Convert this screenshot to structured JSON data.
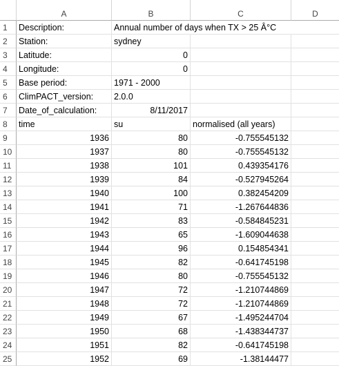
{
  "columns": [
    "A",
    "B",
    "C",
    "D"
  ],
  "meta_rows": [
    {
      "n": "1",
      "a": "Description:",
      "b": "Annual number of days when TX > 25 Â°C",
      "b_align": "left",
      "c": ""
    },
    {
      "n": "2",
      "a": "Station:",
      "b": "sydney",
      "b_align": "left",
      "c": ""
    },
    {
      "n": "3",
      "a": "Latitude:",
      "b": "0",
      "b_align": "right",
      "c": ""
    },
    {
      "n": "4",
      "a": "Longitude:",
      "b": "0",
      "b_align": "right",
      "c": ""
    },
    {
      "n": "5",
      "a": "Base period:",
      "b": "1971 - 2000",
      "b_align": "left",
      "c": ""
    },
    {
      "n": "6",
      "a": "ClimPACT_version:",
      "b": "2.0.0",
      "b_align": "left",
      "c": ""
    },
    {
      "n": "7",
      "a": "Date_of_calculation:",
      "b": "8/11/2017",
      "b_align": "right",
      "c": ""
    },
    {
      "n": "8",
      "a": "time",
      "b": "su",
      "b_align": "left",
      "c": "normalised (all years)"
    }
  ],
  "data_rows": [
    {
      "n": "9",
      "time": "1936",
      "su": "80",
      "norm": "-0.755545132"
    },
    {
      "n": "10",
      "time": "1937",
      "su": "80",
      "norm": "-0.755545132"
    },
    {
      "n": "11",
      "time": "1938",
      "su": "101",
      "norm": "0.439354176"
    },
    {
      "n": "12",
      "time": "1939",
      "su": "84",
      "norm": "-0.527945264"
    },
    {
      "n": "13",
      "time": "1940",
      "su": "100",
      "norm": "0.382454209"
    },
    {
      "n": "14",
      "time": "1941",
      "su": "71",
      "norm": "-1.267644836"
    },
    {
      "n": "15",
      "time": "1942",
      "su": "83",
      "norm": "-0.584845231"
    },
    {
      "n": "16",
      "time": "1943",
      "su": "65",
      "norm": "-1.609044638"
    },
    {
      "n": "17",
      "time": "1944",
      "su": "96",
      "norm": "0.154854341"
    },
    {
      "n": "18",
      "time": "1945",
      "su": "82",
      "norm": "-0.641745198"
    },
    {
      "n": "19",
      "time": "1946",
      "su": "80",
      "norm": "-0.755545132"
    },
    {
      "n": "20",
      "time": "1947",
      "su": "72",
      "norm": "-1.210744869"
    },
    {
      "n": "21",
      "time": "1948",
      "su": "72",
      "norm": "-1.210744869"
    },
    {
      "n": "22",
      "time": "1949",
      "su": "67",
      "norm": "-1.495244704"
    },
    {
      "n": "23",
      "time": "1950",
      "su": "68",
      "norm": "-1.438344737"
    },
    {
      "n": "24",
      "time": "1951",
      "su": "82",
      "norm": "-0.641745198"
    },
    {
      "n": "25",
      "time": "1952",
      "su": "69",
      "norm": "-1.38144477"
    }
  ]
}
